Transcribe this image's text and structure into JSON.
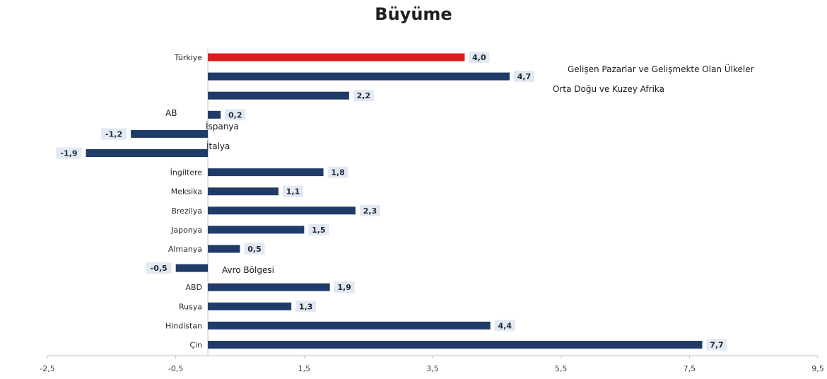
{
  "chart_data": {
    "type": "bar",
    "orientation": "horizontal",
    "title": "Büyüme",
    "categories": [
      "Türkiye",
      "Gelişen Pazarlar ve Gelişmekte Olan Ülkeler",
      "Orta Doğu ve Kuzey Afrika",
      "AB",
      "İspanya",
      "İtalya",
      "İngiltere",
      "Meksika",
      "Brezilya",
      "Japonya",
      "Almanya",
      "Avro Bölgesi",
      "ABD",
      "Rusya",
      "Hindistan",
      "Çin"
    ],
    "values": [
      4.0,
      4.7,
      2.2,
      0.2,
      -1.2,
      -1.9,
      1.8,
      1.1,
      2.3,
      1.5,
      0.5,
      -0.5,
      1.9,
      1.3,
      4.4,
      7.7
    ],
    "value_labels": [
      "4,0",
      "4,7",
      "2,2",
      "0,2",
      "-1,2",
      "-1,9",
      "1,8",
      "1,1",
      "2,3",
      "1,5",
      "0,5",
      "-0,5",
      "1,9",
      "1,3",
      "4,4",
      "7,7"
    ],
    "xlim": [
      -2.5,
      9.5
    ],
    "xticks": [
      -2.5,
      -0.5,
      1.5,
      3.5,
      5.5,
      7.5,
      9.5
    ],
    "xtick_labels": [
      "-2,5",
      "-0,5",
      "1,5",
      "3,5",
      "5,5",
      "7,5",
      "9,5"
    ],
    "highlight_category": "Türkiye",
    "colors": {
      "default_bar": "#1f3b68",
      "highlight_bar": "#d91e1e",
      "label_bg": "#e3e9f2",
      "axis": "#bfbfbf"
    },
    "grid": false,
    "legend": "none"
  }
}
